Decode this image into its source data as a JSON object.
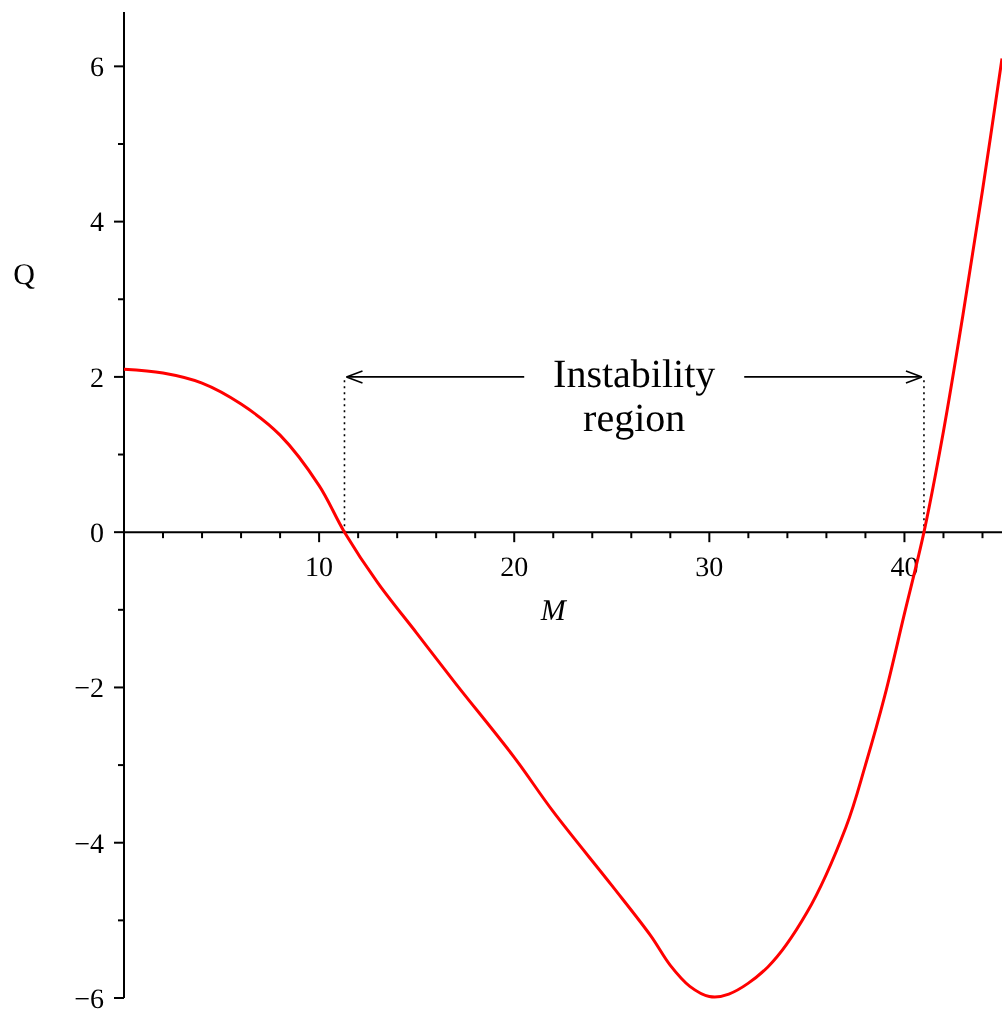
{
  "chart_data": {
    "type": "line",
    "xlabel": "M",
    "ylabel": "Q",
    "x": [
      0,
      2,
      4,
      6,
      8,
      10,
      11.3,
      13,
      15,
      17,
      20,
      22,
      25,
      27,
      28,
      29,
      30,
      31,
      33,
      35,
      37,
      38,
      39,
      40,
      41,
      42,
      43,
      44,
      45
    ],
    "series": [
      {
        "color": "#ff0000",
        "values": [
          2.1,
          2.05,
          1.92,
          1.65,
          1.25,
          0.6,
          0,
          -0.65,
          -1.3,
          -1.95,
          -2.9,
          -3.6,
          -4.55,
          -5.2,
          -5.58,
          -5.85,
          -5.98,
          -5.95,
          -5.6,
          -4.9,
          -3.8,
          -3.0,
          -2.1,
          -1.05,
          0,
          1.3,
          2.8,
          4.4,
          6.1
        ]
      }
    ],
    "xlim": [
      0,
      45
    ],
    "ylim": [
      -6,
      6.7
    ],
    "xticks": [
      {
        "value": 2,
        "label": null
      },
      {
        "value": 4,
        "label": null
      },
      {
        "value": 6,
        "label": null
      },
      {
        "value": 8,
        "label": null
      },
      10,
      {
        "value": 12,
        "label": null
      },
      {
        "value": 14,
        "label": null
      },
      {
        "value": 16,
        "label": null
      },
      {
        "value": 18,
        "label": null
      },
      20,
      {
        "value": 22,
        "label": null
      },
      {
        "value": 24,
        "label": null
      },
      {
        "value": 26,
        "label": null
      },
      {
        "value": 28,
        "label": null
      },
      30,
      {
        "value": 32,
        "label": null
      },
      {
        "value": 34,
        "label": null
      },
      {
        "value": 36,
        "label": null
      },
      {
        "value": 38,
        "label": null
      },
      40,
      {
        "value": 42,
        "label": null
      },
      {
        "value": 44,
        "label": null
      }
    ],
    "yticks": [
      {
        "value": -6,
        "label": "−6"
      },
      {
        "value": -5,
        "label": null
      },
      {
        "value": -4,
        "label": "−4"
      },
      {
        "value": -3,
        "label": null
      },
      {
        "value": -2,
        "label": "−2"
      },
      {
        "value": -1,
        "label": null
      },
      0,
      {
        "value": 1,
        "label": null
      },
      2,
      {
        "value": 3,
        "label": null
      },
      4,
      {
        "value": 5,
        "label": null
      },
      6
    ],
    "ref_lines": [
      {
        "axis": "x",
        "value": 11.3,
        "line_style": "dotted"
      },
      {
        "axis": "x",
        "value": 41,
        "line_style": "dotted"
      }
    ],
    "annotations": [
      {
        "text": "Instability region",
        "x": 11.3,
        "y": 2
      }
    ],
    "grid": false,
    "line_style": "solid"
  }
}
